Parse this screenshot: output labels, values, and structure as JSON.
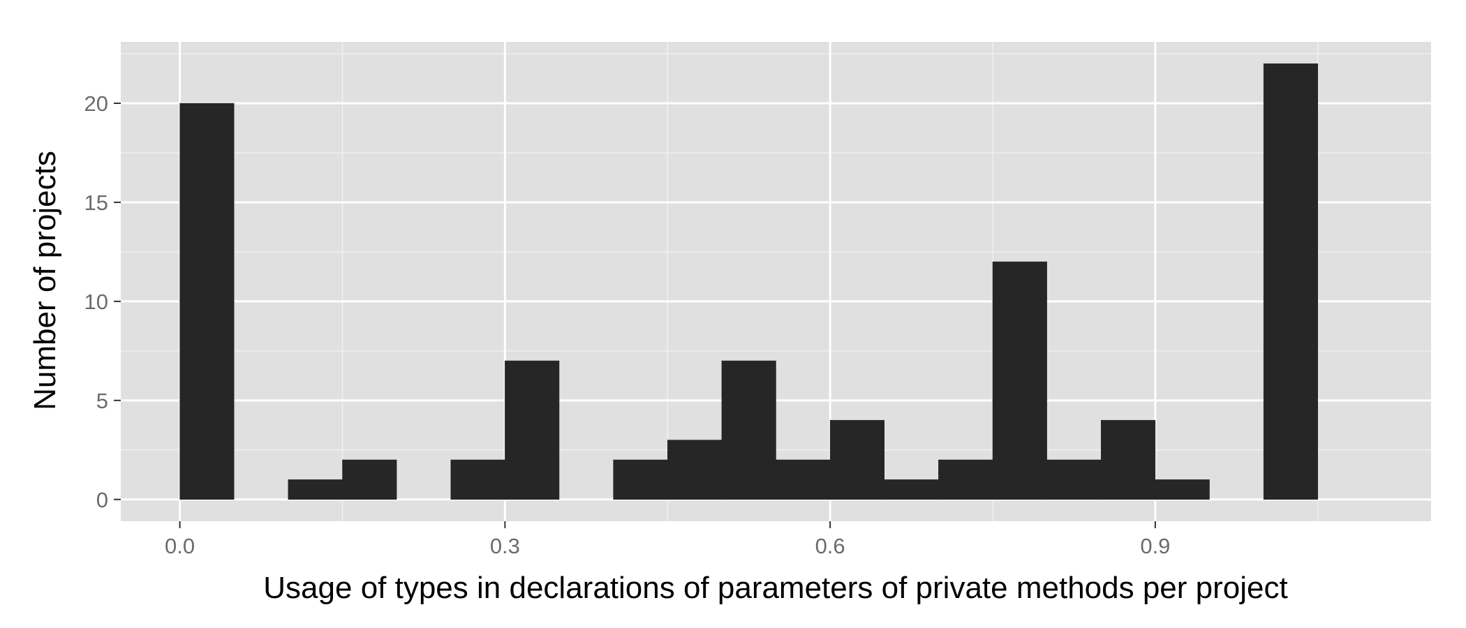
{
  "chart_data": {
    "type": "bar",
    "title": "",
    "xlabel": "Usage of types in declarations of parameters of private methods per project",
    "ylabel": "Number of projects",
    "bin_width": 0.05,
    "bins": [
      {
        "start": 0.0,
        "count": 20
      },
      {
        "start": 0.05,
        "count": 0
      },
      {
        "start": 0.1,
        "count": 1
      },
      {
        "start": 0.15,
        "count": 2
      },
      {
        "start": 0.2,
        "count": 0
      },
      {
        "start": 0.25,
        "count": 2
      },
      {
        "start": 0.3,
        "count": 7
      },
      {
        "start": 0.35,
        "count": 0
      },
      {
        "start": 0.4,
        "count": 2
      },
      {
        "start": 0.45,
        "count": 3
      },
      {
        "start": 0.5,
        "count": 7
      },
      {
        "start": 0.55,
        "count": 2
      },
      {
        "start": 0.6,
        "count": 4
      },
      {
        "start": 0.65,
        "count": 1
      },
      {
        "start": 0.7,
        "count": 2
      },
      {
        "start": 0.75,
        "count": 12
      },
      {
        "start": 0.8,
        "count": 2
      },
      {
        "start": 0.85,
        "count": 4
      },
      {
        "start": 0.9,
        "count": 1
      },
      {
        "start": 0.95,
        "count": 0
      },
      {
        "start": 1.0,
        "count": 22
      }
    ],
    "xlim": [
      -0.0545,
      1.1545
    ],
    "ylim": [
      -1.1,
      23.1
    ],
    "x_ticks": [
      {
        "value": 0.0,
        "label": "0.0"
      },
      {
        "value": 0.3,
        "label": "0.3"
      },
      {
        "value": 0.6,
        "label": "0.6"
      },
      {
        "value": 0.9,
        "label": "0.9"
      }
    ],
    "x_minor_ticks": [
      0.15,
      0.45,
      0.75,
      1.05
    ],
    "y_ticks": [
      {
        "value": 0,
        "label": "0"
      },
      {
        "value": 5,
        "label": "5"
      },
      {
        "value": 10,
        "label": "10"
      },
      {
        "value": 15,
        "label": "15"
      },
      {
        "value": 20,
        "label": "20"
      }
    ],
    "y_minor_ticks": [
      2.5,
      7.5,
      12.5,
      17.5,
      22.5
    ],
    "grid": true,
    "colors": {
      "bar": "#262626",
      "panel": "#e0e0e0",
      "grid_major": "#ffffff",
      "grid_minor": "#f0f0f0",
      "tick_mark": "#333333",
      "tick_label": "#6b6b6b"
    }
  }
}
